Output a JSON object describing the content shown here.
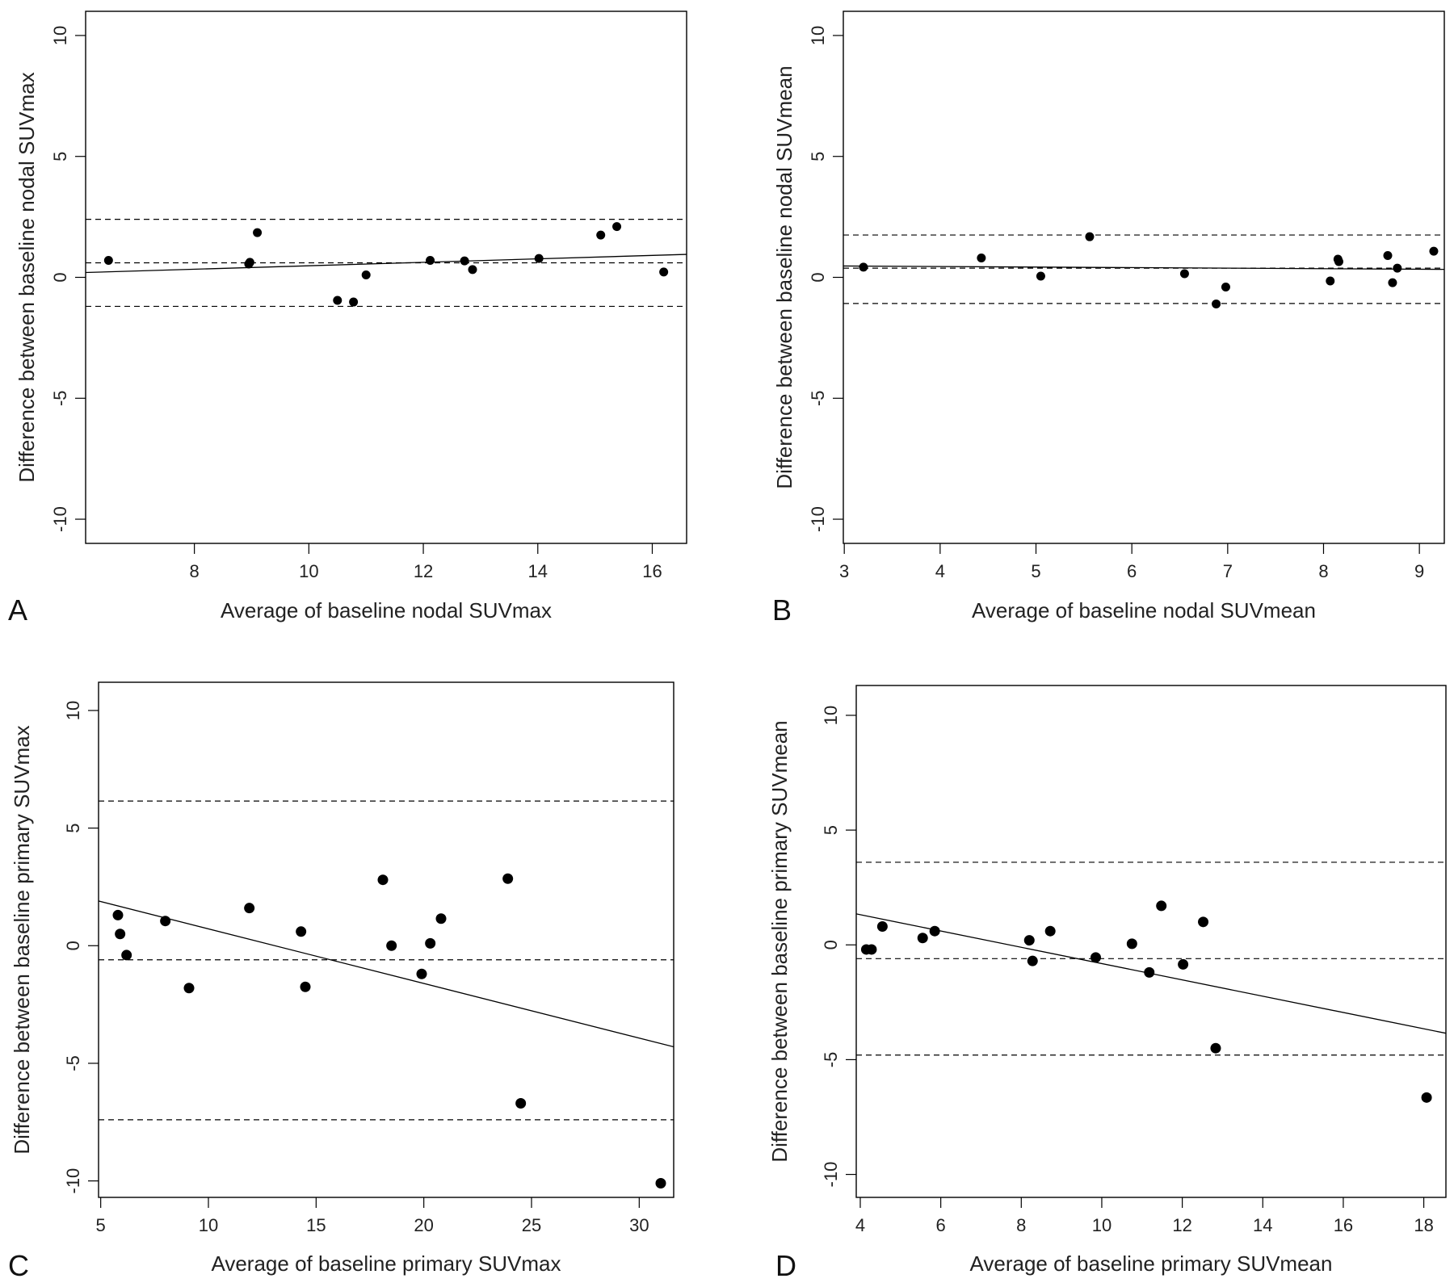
{
  "chart_data": [
    {
      "panel_label": "A",
      "type": "scatter",
      "xlabel": "Average of baseline nodal SUVmax",
      "ylabel": "Difference between baseline nodal SUVmax",
      "xlim": [
        6.1,
        16.6
      ],
      "ylim": [
        -11,
        11
      ],
      "xticks": [
        8,
        10,
        12,
        14,
        16
      ],
      "yticks": [
        -10,
        -5,
        0,
        5,
        10
      ],
      "points": [
        {
          "x": 6.5,
          "y": 0.7
        },
        {
          "x": 8.95,
          "y": 0.55
        },
        {
          "x": 8.97,
          "y": 0.62
        },
        {
          "x": 9.1,
          "y": 1.85
        },
        {
          "x": 10.5,
          "y": -0.95
        },
        {
          "x": 10.78,
          "y": -1.02
        },
        {
          "x": 11.0,
          "y": 0.1
        },
        {
          "x": 12.12,
          "y": 0.7
        },
        {
          "x": 12.72,
          "y": 0.68
        },
        {
          "x": 12.86,
          "y": 0.32
        },
        {
          "x": 14.02,
          "y": 0.78
        },
        {
          "x": 15.1,
          "y": 1.75
        },
        {
          "x": 15.38,
          "y": 2.1
        },
        {
          "x": 16.2,
          "y": 0.22
        }
      ],
      "dashed_lines": [
        2.4,
        0.6,
        -1.2
      ],
      "regression": {
        "x": [
          6.1,
          16.6
        ],
        "y": [
          0.2,
          0.95
        ]
      },
      "grid": false
    },
    {
      "panel_label": "B",
      "type": "scatter",
      "xlabel": "Average of baseline nodal SUVmean",
      "ylabel": "Difference between baseline nodal SUVmean",
      "xlim": [
        2.99,
        9.26
      ],
      "ylim": [
        -11,
        11
      ],
      "xticks": [
        3,
        4,
        5,
        6,
        7,
        8,
        9
      ],
      "yticks": [
        -10,
        -5,
        0,
        5,
        10
      ],
      "points": [
        {
          "x": 3.2,
          "y": 0.42
        },
        {
          "x": 4.43,
          "y": 0.8
        },
        {
          "x": 5.05,
          "y": 0.05
        },
        {
          "x": 5.56,
          "y": 1.68
        },
        {
          "x": 6.55,
          "y": 0.15
        },
        {
          "x": 6.88,
          "y": -1.1
        },
        {
          "x": 6.98,
          "y": -0.4
        },
        {
          "x": 8.07,
          "y": -0.15
        },
        {
          "x": 8.15,
          "y": 0.75
        },
        {
          "x": 8.16,
          "y": 0.65
        },
        {
          "x": 8.67,
          "y": 0.9
        },
        {
          "x": 8.72,
          "y": -0.22
        },
        {
          "x": 8.77,
          "y": 0.38
        },
        {
          "x": 9.15,
          "y": 1.08
        }
      ],
      "dashed_lines": [
        1.75,
        0.38,
        -1.08
      ],
      "regression": {
        "x": [
          2.99,
          9.26
        ],
        "y": [
          0.47,
          0.33
        ]
      },
      "grid": false
    },
    {
      "panel_label": "C",
      "type": "scatter",
      "xlabel": "Average of baseline primary SUVmax",
      "ylabel": "Difference between baseline primary SUVmax",
      "xlim": [
        4.9,
        31.6
      ],
      "ylim": [
        -10.7,
        11.2
      ],
      "xticks": [
        5,
        10,
        15,
        20,
        25,
        30
      ],
      "yticks": [
        -10,
        -5,
        0,
        5,
        10
      ],
      "points": [
        {
          "x": 5.8,
          "y": 1.3
        },
        {
          "x": 5.9,
          "y": 0.5
        },
        {
          "x": 6.2,
          "y": -0.4
        },
        {
          "x": 8.0,
          "y": 1.05
        },
        {
          "x": 9.1,
          "y": -1.8
        },
        {
          "x": 11.9,
          "y": 1.6
        },
        {
          "x": 14.3,
          "y": 0.6
        },
        {
          "x": 14.5,
          "y": -1.75
        },
        {
          "x": 18.1,
          "y": 2.8
        },
        {
          "x": 18.5,
          "y": 0.0
        },
        {
          "x": 19.9,
          "y": -1.2
        },
        {
          "x": 20.3,
          "y": 0.1
        },
        {
          "x": 20.8,
          "y": 1.15
        },
        {
          "x": 23.9,
          "y": 2.85
        },
        {
          "x": 24.5,
          "y": -6.7
        },
        {
          "x": 31.0,
          "y": -10.1
        }
      ],
      "dashed_lines": [
        6.15,
        -0.6,
        -7.4
      ],
      "regression": {
        "x": [
          4.9,
          31.6
        ],
        "y": [
          1.9,
          -4.3
        ]
      },
      "grid": false
    },
    {
      "panel_label": "D",
      "type": "scatter",
      "xlabel": "Average of baseline primary SUVmean",
      "ylabel": "Difference between baseline primary SUVmean",
      "xlim": [
        3.9,
        18.55
      ],
      "ylim": [
        -11,
        11.3
      ],
      "xticks": [
        4,
        6,
        8,
        10,
        12,
        14,
        16,
        18
      ],
      "yticks": [
        -10,
        -5,
        0,
        5,
        10
      ],
      "points": [
        {
          "x": 4.15,
          "y": -0.2
        },
        {
          "x": 4.28,
          "y": -0.2
        },
        {
          "x": 4.55,
          "y": 0.8
        },
        {
          "x": 5.55,
          "y": 0.3
        },
        {
          "x": 5.85,
          "y": 0.6
        },
        {
          "x": 8.2,
          "y": 0.2
        },
        {
          "x": 8.28,
          "y": -0.7
        },
        {
          "x": 8.72,
          "y": 0.6
        },
        {
          "x": 9.85,
          "y": -0.55
        },
        {
          "x": 10.75,
          "y": 0.05
        },
        {
          "x": 11.18,
          "y": -1.2
        },
        {
          "x": 11.48,
          "y": 1.7
        },
        {
          "x": 12.02,
          "y": -0.85
        },
        {
          "x": 12.52,
          "y": 1.0
        },
        {
          "x": 12.83,
          "y": -4.5
        },
        {
          "x": 18.07,
          "y": -6.65
        }
      ],
      "dashed_lines": [
        3.6,
        -0.6,
        -4.8
      ],
      "regression": {
        "x": [
          3.9,
          18.55
        ],
        "y": [
          1.35,
          -3.85
        ]
      },
      "grid": false
    }
  ]
}
